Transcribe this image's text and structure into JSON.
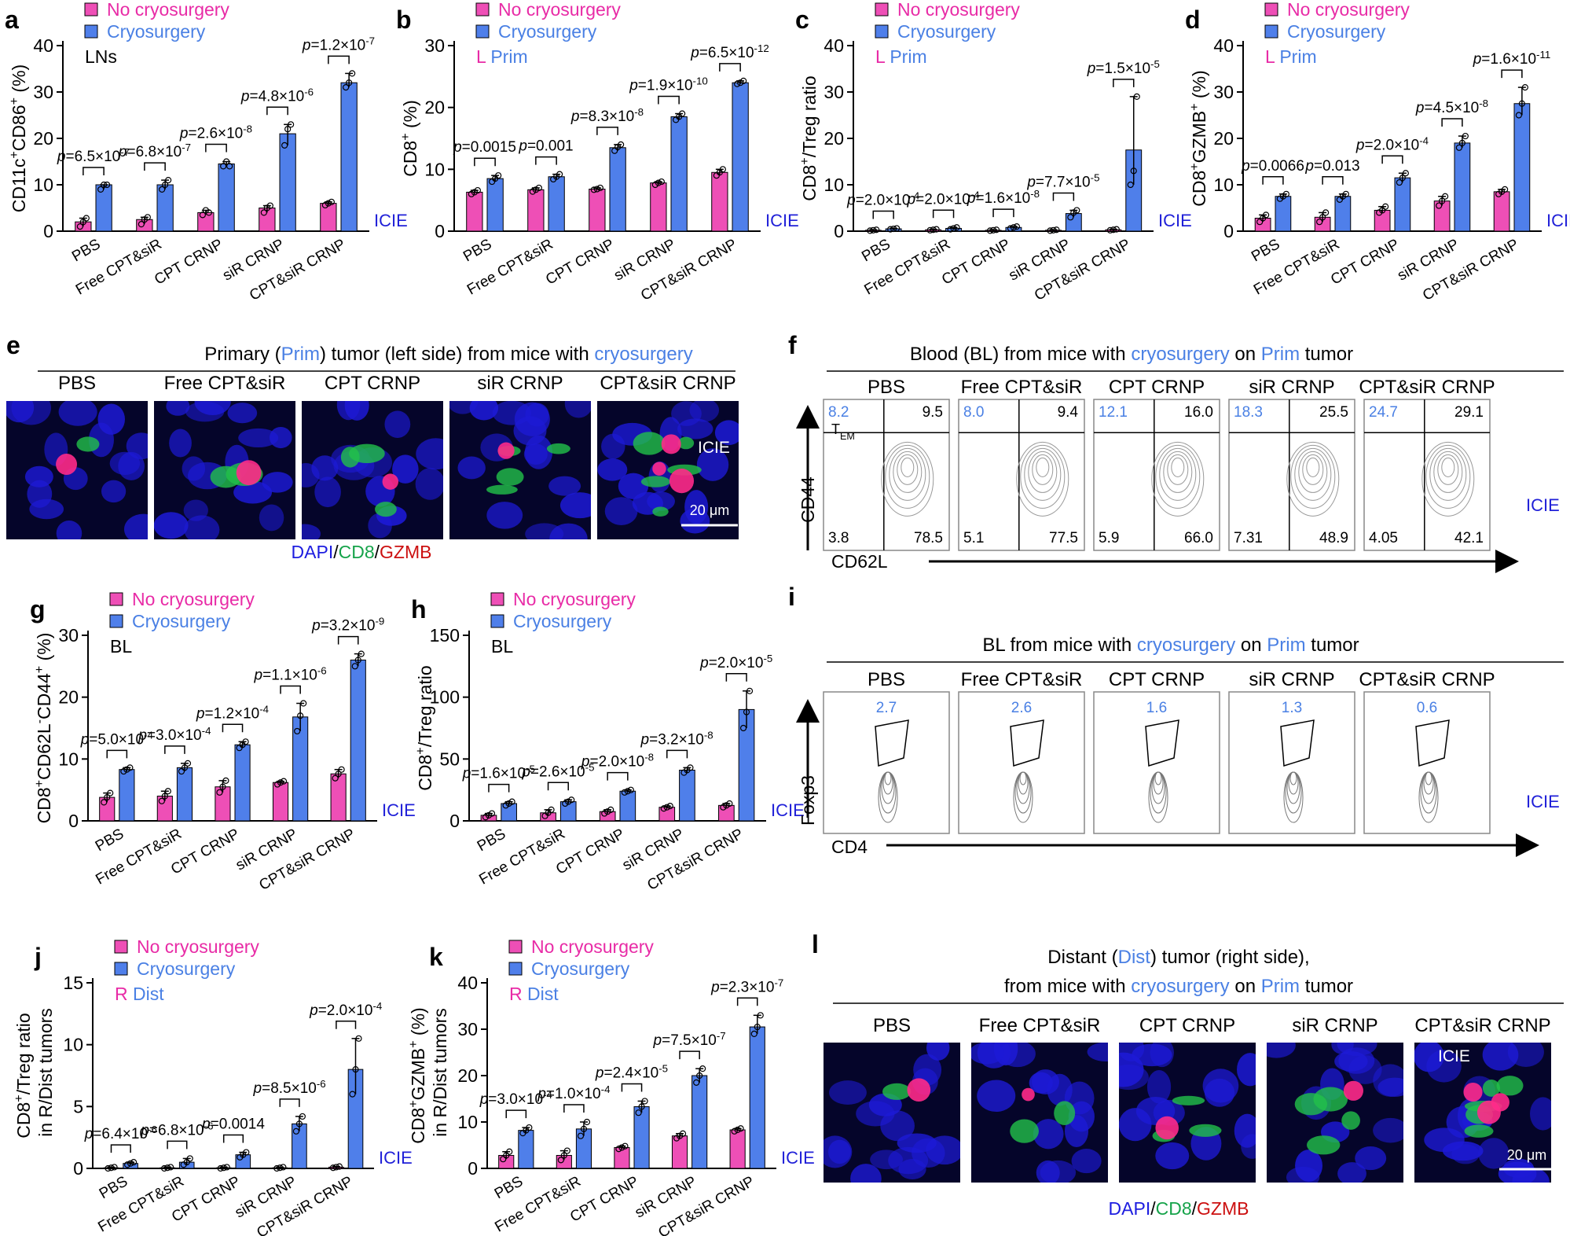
{
  "colors": {
    "no_cryo": "#ee4fb6",
    "cryo": "#4f7fea",
    "blue_text": "#4a80e4",
    "pink_text": "#e82ba6",
    "icie": "#2020d8",
    "red": "#cc1010",
    "green": "#16a34a"
  },
  "legend": {
    "no": "No cryosurgery",
    "yes": "Cryosurgery"
  },
  "groups": [
    "PBS",
    "Free CPT&siR",
    "CPT CRNP",
    "siR CRNP",
    "CPT&siR CRNP"
  ],
  "icie": "ICIE",
  "bar_panels": [
    {
      "letter": "a",
      "ylabel": "CD11c+CD86+ (%)",
      "tag": "LNs",
      "tag_prefix": "",
      "ymax": 40,
      "ticks": [
        0,
        10,
        20,
        30,
        40
      ],
      "no": [
        2,
        2.5,
        4,
        5,
        6
      ],
      "yes": [
        10,
        10,
        14.5,
        21,
        32
      ],
      "no_pts": [
        [
          1,
          2,
          2.8
        ],
        [
          1.5,
          2.5,
          3
        ],
        [
          3.5,
          4.5,
          4
        ],
        [
          4,
          5,
          5.5
        ],
        [
          5.6,
          6,
          6.3
        ]
      ],
      "yes_pts": [
        [
          9,
          10,
          10
        ],
        [
          9,
          10,
          11
        ],
        [
          14,
          15,
          14
        ],
        [
          18.5,
          22,
          23
        ],
        [
          31,
          32,
          34
        ]
      ],
      "pvals": [
        "p=6.5×10-7",
        "p=6.8×10-7",
        "p=2.6×10-8",
        "p=4.8×10-6",
        "p=1.2×10-7"
      ]
    },
    {
      "letter": "b",
      "ylabel": "CD8+ (%)",
      "tag": "Prim",
      "tag_prefix": "L",
      "ymax": 30,
      "ticks": [
        0,
        10,
        20,
        30
      ],
      "no": [
        6.3,
        6.7,
        6.8,
        7.8,
        9.5
      ],
      "yes": [
        8.5,
        8.8,
        13.5,
        18.5,
        24
      ],
      "no_pts": [
        [
          6,
          6.3,
          6.6
        ],
        [
          6.4,
          6.7,
          7
        ],
        [
          6.7,
          6.8,
          7
        ],
        [
          7.5,
          7.8,
          8
        ],
        [
          9,
          9.5,
          10
        ]
      ],
      "yes_pts": [
        [
          8,
          8.5,
          9
        ],
        [
          8.4,
          8.8,
          9.2
        ],
        [
          13,
          13.6,
          14
        ],
        [
          18,
          18.5,
          19
        ],
        [
          23.8,
          24,
          24.3
        ]
      ],
      "pvals": [
        "p=0.0015",
        "p=0.001",
        "p=8.3×10-8",
        "p=1.9×10-10",
        "p=6.5×10-12"
      ]
    },
    {
      "letter": "c",
      "ylabel": "CD8+/Treg ratio",
      "tag": "Prim",
      "tag_prefix": "L",
      "ymax": 40,
      "ticks": [
        0,
        10,
        20,
        30,
        40
      ],
      "no": [
        0.2,
        0.3,
        0.2,
        0.2,
        0.3
      ],
      "yes": [
        0.5,
        0.6,
        0.8,
        3.8,
        17.5
      ],
      "no_pts": [
        [
          0.1,
          0.2,
          0.3
        ],
        [
          0.2,
          0.3,
          0.4
        ],
        [
          0.1,
          0.2,
          0.3
        ],
        [
          0.1,
          0.2,
          0.3
        ],
        [
          0.2,
          0.3,
          0.4
        ]
      ],
      "yes_pts": [
        [
          0.4,
          0.5,
          0.6
        ],
        [
          0.4,
          0.6,
          0.8
        ],
        [
          0.6,
          0.8,
          1
        ],
        [
          3,
          4,
          4.5
        ],
        [
          10,
          13,
          29
        ]
      ],
      "pvals": [
        "p=2.0×10-4",
        "p=2.0×10-4",
        "p=1.6×10-8",
        "p=7.7×10-5",
        "p=1.5×10-5"
      ]
    },
    {
      "letter": "d",
      "ylabel": "CD8+GZMB+ (%)",
      "tag": "Prim",
      "tag_prefix": "L",
      "ymax": 40,
      "ticks": [
        0,
        10,
        20,
        30,
        40
      ],
      "no": [
        2.8,
        3,
        4.5,
        6.5,
        8.5
      ],
      "yes": [
        7.5,
        7.5,
        11.5,
        19,
        27.5
      ],
      "no_pts": [
        [
          2,
          2.8,
          3.5
        ],
        [
          2,
          3,
          4
        ],
        [
          4,
          4.5,
          5.3
        ],
        [
          5.5,
          6.5,
          7.5
        ],
        [
          8,
          8.5,
          9
        ]
      ],
      "yes_pts": [
        [
          7,
          7.5,
          8
        ],
        [
          6.8,
          7.5,
          8
        ],
        [
          10.5,
          11.5,
          12.5
        ],
        [
          18,
          19,
          20.5
        ],
        [
          25,
          27.5,
          31
        ]
      ],
      "pvals": [
        "p=0.0066",
        "p=0.013",
        "p=2.0×10-4",
        "p=4.5×10-8",
        "p=1.6×10-11"
      ]
    },
    {
      "letter": "g",
      "ylabel": "CD8+CD62L-CD44+ (%)",
      "tag": "BL",
      "tag_prefix": "",
      "ymax": 30,
      "ticks": [
        0,
        10,
        20,
        30
      ],
      "no": [
        3.8,
        4,
        5.5,
        6.2,
        7.6
      ],
      "yes": [
        8.3,
        8.6,
        12.3,
        16.8,
        26
      ],
      "no_pts": [
        [
          3,
          3.8,
          4.5
        ],
        [
          3.2,
          4,
          4.8
        ],
        [
          4.6,
          5.5,
          6.5
        ],
        [
          5.9,
          6.2,
          6.4
        ],
        [
          6.9,
          7.6,
          8.3
        ]
      ],
      "yes_pts": [
        [
          8,
          8.3,
          8.6
        ],
        [
          8,
          8.6,
          9.3
        ],
        [
          11.8,
          12.3,
          12.8
        ],
        [
          14.5,
          17,
          19
        ],
        [
          25,
          26,
          27
        ]
      ],
      "pvals": [
        "p=5.0×10-4",
        "p=3.0×10-4",
        "p=1.2×10-4",
        "p=1.1×10-6",
        "p=3.2×10-9"
      ]
    },
    {
      "letter": "h",
      "ylabel": "CD8+/Treg ratio",
      "tag": "BL",
      "tag_prefix": "",
      "ymax": 150,
      "ticks": [
        0,
        50,
        100,
        150
      ],
      "no": [
        4.5,
        6.5,
        7.5,
        11,
        12.5
      ],
      "yes": [
        14,
        15.5,
        24,
        41,
        90
      ],
      "no_pts": [
        [
          3,
          4.5,
          6
        ],
        [
          4,
          6.5,
          9
        ],
        [
          6,
          7.5,
          9
        ],
        [
          10,
          11,
          12
        ],
        [
          11,
          12.5,
          14
        ]
      ],
      "yes_pts": [
        [
          12.5,
          14,
          15.5
        ],
        [
          14,
          15.5,
          17
        ],
        [
          23,
          24,
          25
        ],
        [
          39,
          41,
          43
        ],
        [
          75,
          88,
          105
        ]
      ],
      "pvals": [
        "p=1.6×10-5",
        "p=2.6×10-5",
        "p=2.0×10-8",
        "p=3.2×10-8",
        "p=2.0×10-5"
      ]
    },
    {
      "letter": "j",
      "ylabel": "CD8+/Treg ratio in R/Dist tumors",
      "tag": "Dist",
      "tag_prefix": "R",
      "ymax": 15,
      "ticks": [
        0,
        5,
        10,
        15
      ],
      "no": [
        0.05,
        0.05,
        0.05,
        0.05,
        0.1
      ],
      "yes": [
        0.4,
        0.5,
        1.1,
        3.6,
        8
      ],
      "no_pts": [
        [
          0,
          0.05,
          0.1
        ],
        [
          0,
          0.05,
          0.1
        ],
        [
          0,
          0.05,
          0.1
        ],
        [
          0,
          0.05,
          0.1
        ],
        [
          0.05,
          0.1,
          0.15
        ]
      ],
      "yes_pts": [
        [
          0.3,
          0.4,
          0.5
        ],
        [
          0.3,
          0.5,
          0.8
        ],
        [
          0.9,
          1.1,
          1.3
        ],
        [
          3,
          3.6,
          4.2
        ],
        [
          6,
          8,
          10.5
        ]
      ],
      "pvals": [
        "p=6.4×10-6",
        "p=6.8×10-6",
        "p=0.0014",
        "p=8.5×10-6",
        "p=2.0×10-4"
      ]
    },
    {
      "letter": "k",
      "ylabel": "CD8+GZMB+ (%) in R/Dist tumors",
      "tag": "Dist",
      "tag_prefix": "R",
      "ymax": 40,
      "ticks": [
        0,
        10,
        20,
        30,
        40
      ],
      "no": [
        2.8,
        2.8,
        4.5,
        7,
        8.3
      ],
      "yes": [
        8.2,
        8.5,
        13.3,
        20,
        30.5
      ],
      "no_pts": [
        [
          2,
          2.8,
          3.6
        ],
        [
          1.8,
          2.8,
          3.8
        ],
        [
          4.2,
          4.5,
          4.8
        ],
        [
          6.5,
          7,
          7.5
        ],
        [
          8,
          8.3,
          8.6
        ]
      ],
      "yes_pts": [
        [
          7.6,
          8.2,
          8.8
        ],
        [
          7,
          8.5,
          10
        ],
        [
          12,
          13.3,
          14.5
        ],
        [
          18.5,
          20,
          21.5
        ],
        [
          29,
          30.5,
          33
        ]
      ],
      "pvals": [
        "p=3.0×10-4",
        "p=1.0×10-4",
        "p=2.4×10-5",
        "p=7.5×10-7",
        "p=2.3×10-7"
      ]
    }
  ],
  "panel_e": {
    "letter": "e",
    "title_a": "Primary (",
    "title_b": "Prim",
    ")title_c": "",
    "title_c": ") tumor (left side) from mice with ",
    "title_d": "cryosurgery",
    "scale": "20 μm"
  },
  "micro_legend": {
    "dapi": "DAPI",
    "sep": "/",
    "cd8": "CD8",
    "gzmb": "GZMB"
  },
  "panel_f": {
    "letter": "f",
    "title_a": "Blood (BL) from mice with ",
    "title_b": "cryosurgery",
    "title_c": " on ",
    "title_d": "Prim",
    "title_e": " tumor",
    "tem": "T",
    "tem_sub": "EM",
    "yaxis": "CD44",
    "xaxis": "CD62L",
    "quads": [
      [
        "8.2",
        "9.5",
        "3.8",
        "78.5"
      ],
      [
        "8.0",
        "9.4",
        "5.1",
        "77.5"
      ],
      [
        "12.1",
        "16.0",
        "5.9",
        "66.0"
      ],
      [
        "18.3",
        "25.5",
        "7.31",
        "48.9"
      ],
      [
        "24.7",
        "29.1",
        "4.05",
        "42.1"
      ]
    ]
  },
  "panel_i": {
    "letter": "i",
    "title_a": "BL from mice with ",
    "title_b": "cryosurgery",
    "title_c": " on ",
    "title_d": "Prim",
    "title_e": " tumor",
    "yaxis": "Foxp3",
    "xaxis": "CD4",
    "gates": [
      "2.7",
      "2.6",
      "1.6",
      "1.3",
      "0.6"
    ]
  },
  "panel_l": {
    "letter": "l",
    "line1_a": "Distant (",
    "line1_b": "Dist",
    "line1_c": ") tumor (right side),",
    "line2_a": "from mice with ",
    "line2_b": "cryosurgery",
    "line2_c": " on ",
    "line2_d": "Prim",
    "line2_e": " tumor",
    "scale": "20 μm"
  }
}
